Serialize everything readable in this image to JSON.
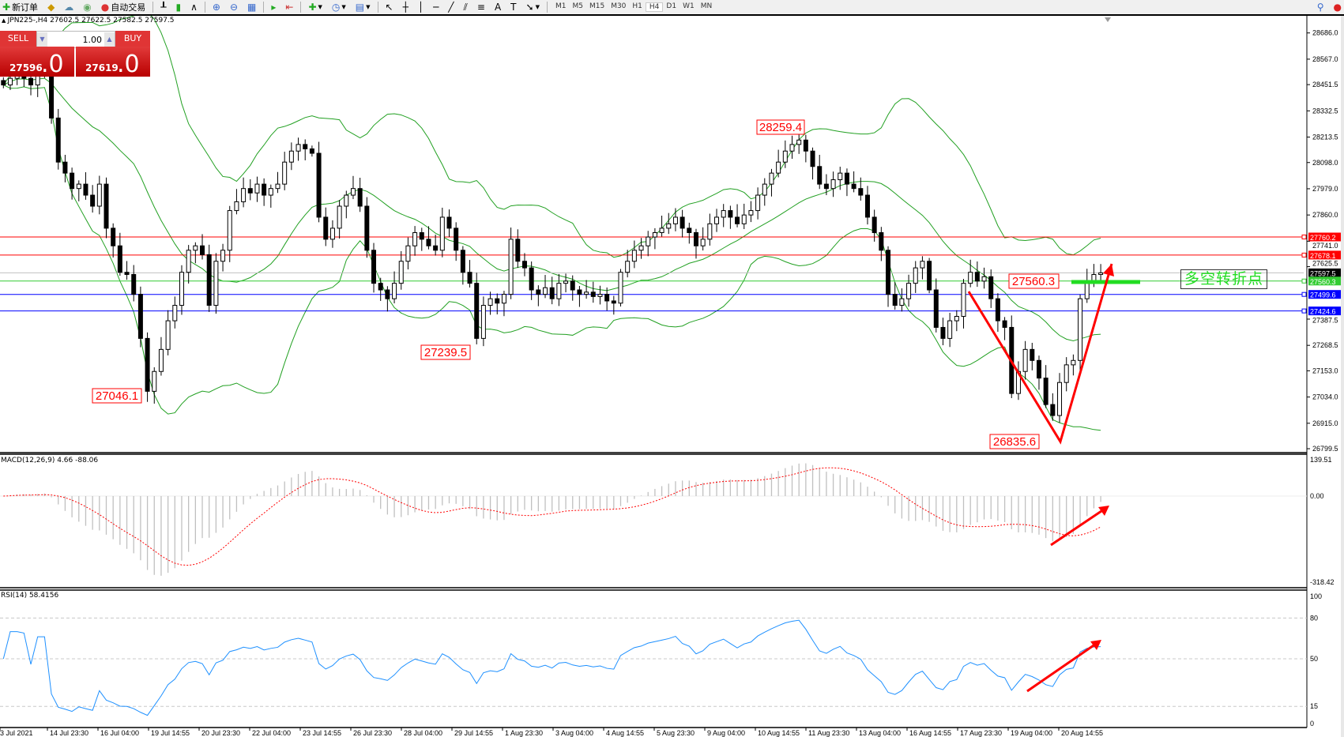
{
  "toolbar": {
    "new_order": "新订单",
    "auto_trading": "自动交易",
    "timeframes": [
      "M1",
      "M5",
      "M15",
      "M30",
      "H1",
      "H4",
      "D1",
      "W1",
      "MN"
    ],
    "active_timeframe": "H4"
  },
  "chart_title": "JPN225-,H4  27602.5 27622.5 27582.5 27597.5",
  "one_click": {
    "sell_label": "SELL",
    "buy_label": "BUY",
    "lot": "1.00",
    "sell_price_main": "27596",
    "sell_price_big": ".0",
    "buy_price_main": "27619",
    "buy_price_big": ".0"
  },
  "colors": {
    "bollinger": "#22a022",
    "macd_hist": "#c0c0c0",
    "macd_signal": "#ff0000",
    "rsi": "#1e90ff",
    "arrow": "#ff0000"
  },
  "price_axis": [
    "28686.0",
    "28567.0",
    "28451.5",
    "28332.5",
    "28213.5",
    "28098.0",
    "27979.0",
    "27860.0",
    "27741.0",
    "27625.5",
    "27387.5",
    "27268.5",
    "27153.0",
    "27034.0",
    "26915.0",
    "26799.5"
  ],
  "levels": [
    {
      "price": "27760.2",
      "color": "#ff0000"
    },
    {
      "price": "27678.1",
      "color": "#ff0000"
    },
    {
      "price": "27597.5",
      "color": "#000000",
      "line": "#c0c0c0"
    },
    {
      "price": "27560.3",
      "color": "#33cc33"
    },
    {
      "price": "27499.6",
      "color": "#0000ff"
    },
    {
      "price": "27424.6",
      "color": "#0000ff"
    }
  ],
  "annotations": {
    "high_label": "28259.4",
    "low1_label": "27046.1",
    "low2_label": "27239.5",
    "low3_label": "26835.6",
    "pivot_label": "27560.3",
    "pivot_text": "多空转折点"
  },
  "macd": {
    "label": "MACD(12,26,9) 4.66 -88.06",
    "axis": [
      "139.51",
      "0.00",
      "-318.42"
    ]
  },
  "rsi": {
    "label": "RSI(14) 58.4156",
    "axis": [
      "100",
      "80",
      "50",
      "15",
      "0"
    ]
  },
  "time_axis": [
    "3 Jul 2021",
    "14 Jul 23:30",
    "16 Jul 04:00",
    "19 Jul 14:55",
    "20 Jul 23:30",
    "22 Jul 04:00",
    "23 Jul 14:55",
    "26 Jul 23:30",
    "28 Jul 04:00",
    "29 Jul 14:55",
    "1 Aug 23:30",
    "3 Aug 04:00",
    "4 Aug 14:55",
    "5 Aug 23:30",
    "9 Aug 04:00",
    "10 Aug 14:55",
    "11 Aug 23:30",
    "13 Aug 04:00",
    "16 Aug 14:55",
    "17 Aug 23:30",
    "19 Aug 04:00",
    "20 Aug 14:55"
  ],
  "chart_data": {
    "type": "candlestick",
    "symbol": "JPN225-",
    "timeframe": "H4",
    "ylim": [
      26799.5,
      28686.0
    ],
    "closes": [
      28450,
      28480,
      28500,
      28480,
      28450,
      28500,
      28500,
      28300,
      28100,
      28050,
      27980,
      28000,
      27950,
      27900,
      28000,
      27800,
      27720,
      27600,
      27590,
      27500,
      27300,
      27060,
      27150,
      27250,
      27380,
      27450,
      27600,
      27700,
      27720,
      27680,
      27450,
      27650,
      27700,
      27880,
      27920,
      27980,
      27960,
      28000,
      27950,
      27980,
      28000,
      28100,
      28150,
      28180,
      28160,
      28140,
      27850,
      27750,
      27800,
      27900,
      27950,
      27980,
      27900,
      27700,
      27550,
      27520,
      27480,
      27550,
      27650,
      27720,
      27780,
      27750,
      27720,
      27700,
      27850,
      27800,
      27700,
      27600,
      27550,
      27300,
      27450,
      27480,
      27460,
      27500,
      27750,
      27650,
      27620,
      27520,
      27500,
      27530,
      27480,
      27550,
      27560,
      27520,
      27500,
      27510,
      27490,
      27500,
      27470,
      27460,
      27600,
      27650,
      27700,
      27720,
      27760,
      27780,
      27800,
      27820,
      27850,
      27800,
      27780,
      27720,
      27750,
      27820,
      27850,
      27880,
      27850,
      27820,
      27860,
      27880,
      27950,
      28000,
      28050,
      28100,
      28150,
      28180,
      28200,
      28150,
      28080,
      28000,
      27980,
      28020,
      28050,
      28000,
      27980,
      27950,
      27850,
      27780,
      27700,
      27500,
      27450,
      27480,
      27550,
      27620,
      27650,
      27520,
      27350,
      27300,
      27380,
      27400,
      27550,
      27600,
      27560,
      27580,
      27480,
      27380,
      27350,
      27050,
      27150,
      27250,
      27200,
      27120,
      27000,
      26950,
      27100,
      27180,
      27200,
      27480,
      27560,
      27590,
      27597.5
    ]
  }
}
